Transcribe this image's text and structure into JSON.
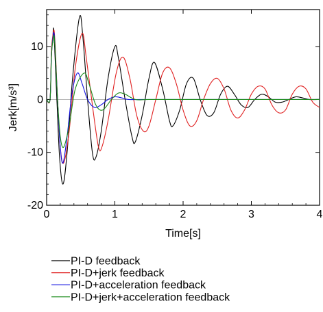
{
  "chart_data": {
    "type": "line",
    "xlabel": "Time[s]",
    "ylabel": "Jerk[m/s³]",
    "xlim": [
      0,
      4
    ],
    "ylim": [
      -20,
      17
    ],
    "x_ticks": [
      0,
      1,
      2,
      3,
      4
    ],
    "y_ticks": [
      -20,
      -10,
      0,
      10
    ],
    "grid": false,
    "legend_position": "bottom",
    "series": [
      {
        "name": "PI-D feedback",
        "color": "#000000",
        "points": [
          [
            0,
            0
          ],
          [
            0.05,
            0
          ],
          [
            0.07,
            9
          ],
          [
            0.09,
            11
          ],
          [
            0.1,
            13.5
          ],
          [
            0.12,
            9
          ],
          [
            0.15,
            0
          ],
          [
            0.19,
            -11
          ],
          [
            0.24,
            -16
          ],
          [
            0.3,
            -10
          ],
          [
            0.38,
            4
          ],
          [
            0.48,
            15.5
          ],
          [
            0.53,
            12
          ],
          [
            0.6,
            0
          ],
          [
            0.67,
            -10
          ],
          [
            0.72,
            -11
          ],
          [
            0.8,
            -6
          ],
          [
            0.9,
            4
          ],
          [
            1.0,
            10
          ],
          [
            1.05,
            8
          ],
          [
            1.15,
            0
          ],
          [
            1.25,
            -7
          ],
          [
            1.3,
            -8
          ],
          [
            1.4,
            -3
          ],
          [
            1.5,
            4
          ],
          [
            1.58,
            7
          ],
          [
            1.7,
            2
          ],
          [
            1.8,
            -4
          ],
          [
            1.85,
            -5
          ],
          [
            1.95,
            -2
          ],
          [
            2.05,
            3
          ],
          [
            2.15,
            4
          ],
          [
            2.25,
            0
          ],
          [
            2.35,
            -3
          ],
          [
            2.45,
            -2.5
          ],
          [
            2.55,
            1
          ],
          [
            2.65,
            2.5
          ],
          [
            2.75,
            1
          ],
          [
            2.85,
            -1
          ],
          [
            2.95,
            -1.5
          ],
          [
            3.05,
            0
          ],
          [
            3.15,
            1
          ],
          [
            3.25,
            0.5
          ],
          [
            3.35,
            -0.5
          ],
          [
            3.45,
            -0.5
          ],
          [
            3.55,
            0
          ],
          [
            3.65,
            0.5
          ],
          [
            3.75,
            0.3
          ],
          [
            3.85,
            0
          ],
          [
            4.0,
            0
          ]
        ]
      },
      {
        "name": "PI-D+jerk feedback",
        "color": "#e02020",
        "points": [
          [
            0,
            0
          ],
          [
            0.05,
            0
          ],
          [
            0.07,
            9
          ],
          [
            0.09,
            12
          ],
          [
            0.11,
            13
          ],
          [
            0.13,
            9
          ],
          [
            0.16,
            0
          ],
          [
            0.2,
            -9
          ],
          [
            0.25,
            -12
          ],
          [
            0.33,
            -6
          ],
          [
            0.42,
            6
          ],
          [
            0.52,
            12.5
          ],
          [
            0.58,
            8
          ],
          [
            0.68,
            -2
          ],
          [
            0.76,
            -9
          ],
          [
            0.81,
            -9
          ],
          [
            0.9,
            -4
          ],
          [
            1.02,
            5
          ],
          [
            1.12,
            8
          ],
          [
            1.22,
            4
          ],
          [
            1.32,
            -3
          ],
          [
            1.42,
            -6
          ],
          [
            1.5,
            -5
          ],
          [
            1.6,
            0
          ],
          [
            1.7,
            5
          ],
          [
            1.8,
            6
          ],
          [
            1.9,
            3
          ],
          [
            2.0,
            -2
          ],
          [
            2.1,
            -5
          ],
          [
            2.2,
            -4
          ],
          [
            2.3,
            0
          ],
          [
            2.4,
            3
          ],
          [
            2.5,
            4
          ],
          [
            2.6,
            2
          ],
          [
            2.7,
            -2
          ],
          [
            2.8,
            -3.5
          ],
          [
            2.9,
            -2
          ],
          [
            3.0,
            1
          ],
          [
            3.1,
            2.5
          ],
          [
            3.2,
            2
          ],
          [
            3.3,
            -1
          ],
          [
            3.4,
            -2.5
          ],
          [
            3.5,
            -2
          ],
          [
            3.6,
            1
          ],
          [
            3.7,
            2.5
          ],
          [
            3.8,
            2
          ],
          [
            3.9,
            -0.5
          ],
          [
            4.0,
            -1.5
          ]
        ]
      },
      {
        "name": "PI-D+acceleration feedback",
        "color": "#1010e0",
        "points": [
          [
            0,
            0
          ],
          [
            0.05,
            0
          ],
          [
            0.07,
            8
          ],
          [
            0.09,
            11.5
          ],
          [
            0.11,
            12.5
          ],
          [
            0.13,
            8
          ],
          [
            0.16,
            0
          ],
          [
            0.2,
            -9
          ],
          [
            0.24,
            -12
          ],
          [
            0.3,
            -7
          ],
          [
            0.37,
            1
          ],
          [
            0.45,
            5
          ],
          [
            0.52,
            3
          ],
          [
            0.6,
            0
          ],
          [
            0.7,
            -1.5
          ],
          [
            0.8,
            -1
          ],
          [
            0.9,
            0
          ],
          [
            1.0,
            0.5
          ],
          [
            1.1,
            0.3
          ],
          [
            1.2,
            0
          ],
          [
            1.4,
            0
          ],
          [
            2.0,
            0
          ],
          [
            3.0,
            0
          ],
          [
            4.0,
            0
          ]
        ]
      },
      {
        "name": "PI-D+jerk+acceleration feedback",
        "color": "#1a8a1a",
        "points": [
          [
            0,
            0
          ],
          [
            0.05,
            0
          ],
          [
            0.07,
            8
          ],
          [
            0.09,
            11
          ],
          [
            0.11,
            12
          ],
          [
            0.13,
            8
          ],
          [
            0.16,
            0
          ],
          [
            0.2,
            -7
          ],
          [
            0.25,
            -9
          ],
          [
            0.33,
            -5
          ],
          [
            0.42,
            2
          ],
          [
            0.55,
            5
          ],
          [
            0.62,
            3
          ],
          [
            0.72,
            -1
          ],
          [
            0.82,
            -2
          ],
          [
            0.95,
            0
          ],
          [
            1.05,
            1.2
          ],
          [
            1.15,
            1
          ],
          [
            1.3,
            0
          ],
          [
            1.5,
            0
          ],
          [
            2.0,
            0
          ],
          [
            3.0,
            0
          ],
          [
            4.0,
            0
          ]
        ]
      }
    ]
  }
}
